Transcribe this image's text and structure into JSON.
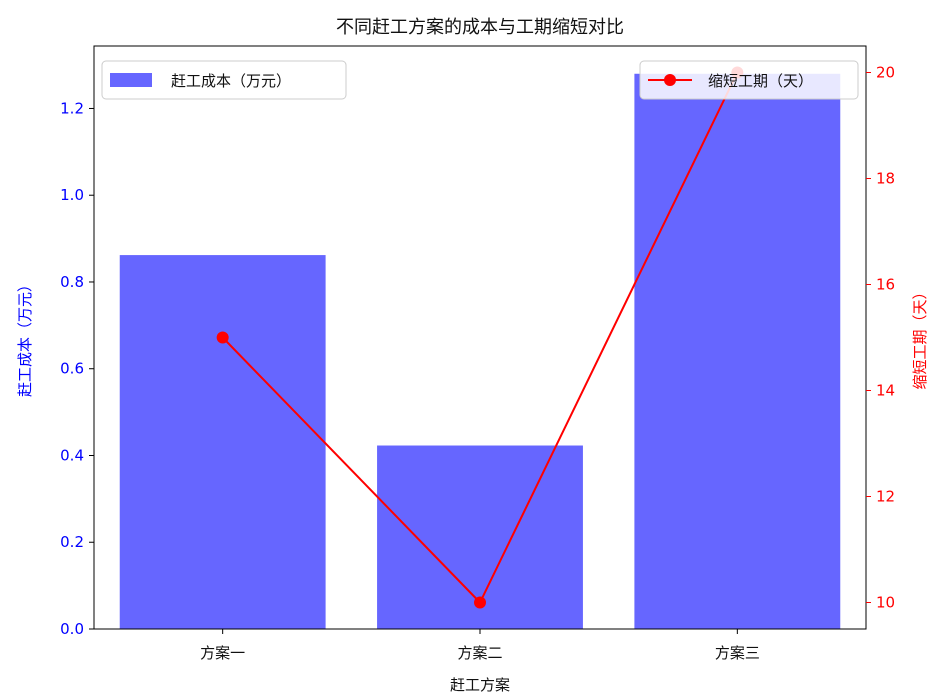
{
  "chart_data": {
    "type": "bar",
    "title": "不同赶工方案的成本与工期缩短对比",
    "xlabel": "赶工方案",
    "categories": [
      "方案一",
      "方案二",
      "方案三"
    ],
    "series": [
      {
        "name": "赶工成本（万元）",
        "type": "bar",
        "axis": "left",
        "color": "#6666ff",
        "values": [
          0.862,
          0.423,
          1.28
        ]
      },
      {
        "name": "缩短工期（天）",
        "type": "line",
        "axis": "right",
        "color": "#ff0000",
        "marker": "circle",
        "values": [
          15,
          10,
          20
        ]
      }
    ],
    "y_left": {
      "label": "赶工成本（万元）",
      "color": "#0000ff",
      "ylim": [
        0,
        1.344
      ],
      "ticks": [
        "0.0",
        "0.2",
        "0.4",
        "0.6",
        "0.8",
        "1.0",
        "1.2"
      ]
    },
    "y_right": {
      "label": "缩短工期（天）",
      "color": "#ff0000",
      "ylim": [
        9.5,
        20.5
      ],
      "ticks": [
        "10",
        "12",
        "14",
        "16",
        "18",
        "20"
      ]
    },
    "legend_left_placement": "upper-left",
    "legend_right_placement": "upper-right",
    "grid": false
  }
}
